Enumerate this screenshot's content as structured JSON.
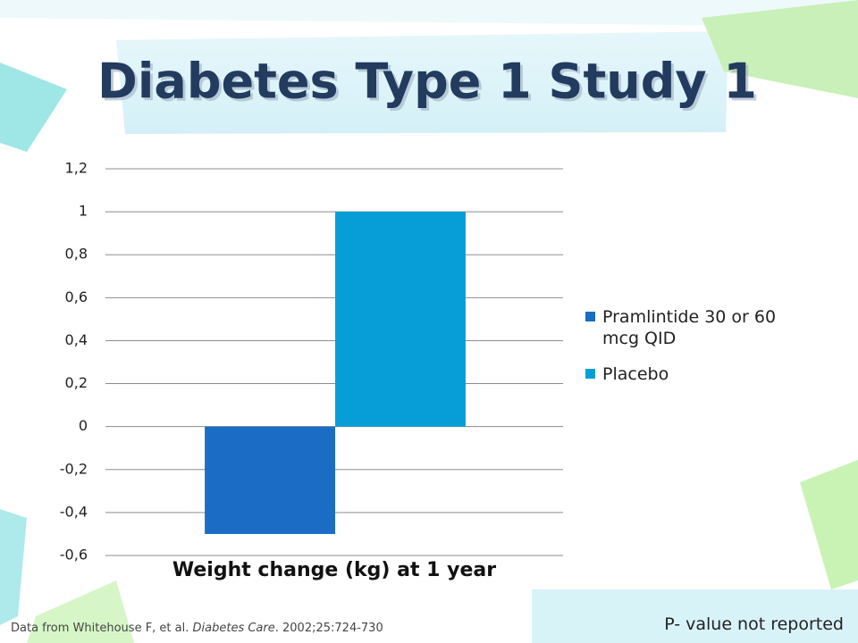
{
  "chart_data": {
    "type": "bar",
    "title": "Diabetes Type 1 Study 1",
    "categories": [
      "Weight change (kg) at 1 year"
    ],
    "series": [
      {
        "name": "Pramlintide 30 or 60 mcg QID",
        "color": "#1a6cc4",
        "values": [
          -0.5
        ]
      },
      {
        "name": "Placebo",
        "color": "#079ed8",
        "values": [
          1
        ]
      }
    ],
    "ylim": [
      -0.6,
      1.2
    ],
    "yticks": [
      {
        "value": -0.6,
        "label": "-0,6"
      },
      {
        "value": -0.4,
        "label": "-0,4"
      },
      {
        "value": -0.2,
        "label": "-0,2"
      },
      0,
      {
        "value": 0.2,
        "label": "0,2"
      },
      {
        "value": 0.4,
        "label": "0,4"
      },
      {
        "value": 0.6,
        "label": "0,6"
      },
      {
        "value": 0.8,
        "label": "0,8"
      },
      1,
      {
        "value": 1.2,
        "label": "1,2"
      }
    ],
    "grid": true,
    "legend": "right",
    "source": {
      "prefix": "Data from Whitehouse F, et al.",
      "journal": "Diabetes Care",
      "citation": "2002;25:724-730"
    },
    "note": "P- value not reported"
  }
}
